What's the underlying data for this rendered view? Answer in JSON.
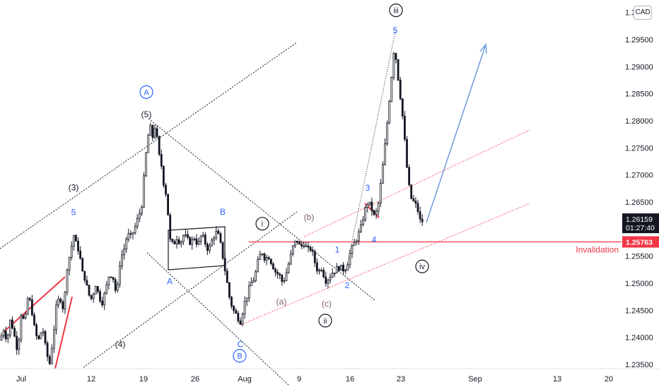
{
  "currency_badge": "CAD",
  "colors": {
    "candle": "#131722",
    "axis_bg": "#ffffff",
    "axis_text": "#131722",
    "blue_label": "#2962ff",
    "black_label": "#131722",
    "purple_label": "#7e5d6f",
    "red": "#f23645",
    "red_channel": "#f7525f",
    "blue_arrow": "#5b8fd6",
    "price_tag_bg": "#131722",
    "invalidation_tag_bg": "#f23645"
  },
  "chart_data": {
    "type": "candlestick",
    "title": "",
    "xlabel": "",
    "ylabel": "",
    "ylim": [
      1.2345,
      1.3025
    ],
    "y_ticks": [
      "1.23500",
      "1.24000",
      "1.24500",
      "1.25000",
      "1.25500",
      "1.26000",
      "1.26500",
      "1.27000",
      "1.27500",
      "1.28000",
      "1.28500",
      "1.29000",
      "1.29500",
      "1.3"
    ],
    "x_ticks": [
      "Jul",
      "12",
      "19",
      "26",
      "Aug",
      "9",
      "16",
      "23",
      "Sep",
      "13",
      "20"
    ],
    "current_price": "1.26159",
    "countdown": "01:27:40",
    "invalidation_price": "1.25763",
    "invalidation_label": "Invalidation",
    "close_path": [
      [
        0,
        1.2395
      ],
      [
        5,
        1.2415
      ],
      [
        10,
        1.2395
      ],
      [
        15,
        1.2435
      ],
      [
        20,
        1.2405
      ],
      [
        25,
        1.2375
      ],
      [
        30,
        1.2445
      ],
      [
        35,
        1.2425
      ],
      [
        40,
        1.248
      ],
      [
        45,
        1.245
      ],
      [
        50,
        1.2405
      ],
      [
        55,
        1.2395
      ],
      [
        60,
        1.242
      ],
      [
        65,
        1.2375
      ],
      [
        70,
        1.235
      ],
      [
        75,
        1.24
      ],
      [
        80,
        1.246
      ],
      [
        85,
        1.2475
      ],
      [
        90,
        1.245
      ],
      [
        95,
        1.253
      ],
      [
        100,
        1.256
      ],
      [
        104,
        1.259
      ],
      [
        108,
        1.257
      ],
      [
        112,
        1.256
      ],
      [
        116,
        1.252
      ],
      [
        120,
        1.251
      ],
      [
        125,
        1.248
      ],
      [
        130,
        1.247
      ],
      [
        135,
        1.25
      ],
      [
        140,
        1.2475
      ],
      [
        145,
        1.2465
      ],
      [
        150,
        1.249
      ],
      [
        155,
        1.252
      ],
      [
        160,
        1.251
      ],
      [
        165,
        1.2475
      ],
      [
        170,
        1.2545
      ],
      [
        175,
        1.256
      ],
      [
        180,
        1.259
      ],
      [
        185,
        1.2585
      ],
      [
        190,
        1.26
      ],
      [
        195,
        1.262
      ],
      [
        200,
        1.264
      ],
      [
        204,
        1.27
      ],
      [
        208,
        1.276
      ],
      [
        212,
        1.279
      ],
      [
        216,
        1.277
      ],
      [
        220,
        1.2795
      ],
      [
        224,
        1.274
      ],
      [
        228,
        1.272
      ],
      [
        232,
        1.268
      ],
      [
        236,
        1.266
      ],
      [
        240,
        1.258
      ],
      [
        245,
        1.257
      ],
      [
        250,
        1.2585
      ],
      [
        255,
        1.2575
      ],
      [
        260,
        1.259
      ],
      [
        265,
        1.258
      ],
      [
        270,
        1.2575
      ],
      [
        275,
        1.2585
      ],
      [
        280,
        1.257
      ],
      [
        285,
        1.259
      ],
      [
        290,
        1.2575
      ],
      [
        295,
        1.256
      ],
      [
        300,
        1.258
      ],
      [
        305,
        1.2595
      ],
      [
        310,
        1.2585
      ],
      [
        315,
        1.255
      ],
      [
        320,
        1.251
      ],
      [
        325,
        1.247
      ],
      [
        330,
        1.245
      ],
      [
        335,
        1.244
      ],
      [
        340,
        1.243
      ],
      [
        345,
        1.246
      ],
      [
        350,
        1.248
      ],
      [
        355,
        1.25
      ],
      [
        360,
        1.251
      ],
      [
        365,
        1.254
      ],
      [
        370,
        1.256
      ],
      [
        375,
        1.2545
      ],
      [
        380,
        1.255
      ],
      [
        385,
        1.2535
      ],
      [
        390,
        1.252
      ],
      [
        395,
        1.2515
      ],
      [
        400,
        1.25
      ],
      [
        405,
        1.252
      ],
      [
        410,
        1.2545
      ],
      [
        415,
        1.257
      ],
      [
        420,
        1.258
      ],
      [
        425,
        1.2565
      ],
      [
        430,
        1.2575
      ],
      [
        435,
        1.256
      ],
      [
        440,
        1.2565
      ],
      [
        445,
        1.254
      ],
      [
        450,
        1.252
      ],
      [
        455,
        1.253
      ],
      [
        460,
        1.2505
      ],
      [
        465,
        1.251
      ],
      [
        470,
        1.252
      ],
      [
        475,
        1.2525
      ],
      [
        480,
        1.253
      ],
      [
        485,
        1.2525
      ],
      [
        490,
        1.253
      ],
      [
        495,
        1.2555
      ],
      [
        500,
        1.257
      ],
      [
        505,
        1.2585
      ],
      [
        510,
        1.26
      ],
      [
        515,
        1.263
      ],
      [
        520,
        1.265
      ],
      [
        525,
        1.264
      ],
      [
        530,
        1.262
      ],
      [
        535,
        1.2645
      ],
      [
        540,
        1.27
      ],
      [
        545,
        1.276
      ],
      [
        550,
        1.283
      ],
      [
        555,
        1.29
      ],
      [
        558,
        1.2945
      ],
      [
        561,
        1.29
      ],
      [
        565,
        1.286
      ],
      [
        570,
        1.28
      ],
      [
        575,
        1.272
      ],
      [
        580,
        1.266
      ],
      [
        585,
        1.265
      ],
      [
        590,
        1.264
      ],
      [
        595,
        1.261
      ],
      [
        598,
        1.2616
      ]
    ],
    "labels": [
      {
        "text": "A",
        "kind": "circled",
        "color": "blue",
        "x": 207,
        "price": 1.2853
      },
      {
        "text": "(5)",
        "kind": "plain",
        "color": "black",
        "x": 207,
        "price": 1.2812
      },
      {
        "text": "(3)",
        "kind": "plain",
        "color": "black",
        "x": 104,
        "price": 1.2677
      },
      {
        "text": "5",
        "kind": "plain",
        "color": "blue",
        "x": 104,
        "price": 1.2631
      },
      {
        "text": "B",
        "kind": "plain",
        "color": "blue",
        "x": 315,
        "price": 1.2632
      },
      {
        "text": "A",
        "kind": "plain",
        "color": "blue",
        "x": 240,
        "price": 1.2503
      },
      {
        "text": "i",
        "kind": "circled",
        "color": "black",
        "x": 371,
        "price": 1.261
      },
      {
        "text": "(b)",
        "kind": "plain",
        "color": "purple",
        "x": 437,
        "price": 1.2622
      },
      {
        "text": "(a)",
        "kind": "plain",
        "color": "purple",
        "x": 398,
        "price": 1.2466
      },
      {
        "text": "(c)",
        "kind": "plain",
        "color": "purple",
        "x": 462,
        "price": 1.2462
      },
      {
        "text": "ii",
        "kind": "circled",
        "color": "black",
        "x": 460,
        "price": 1.2431
      },
      {
        "text": "C",
        "kind": "plain",
        "color": "blue",
        "x": 340,
        "price": 1.2387
      },
      {
        "text": "B",
        "kind": "circled",
        "color": "blue",
        "x": 339,
        "price": 1.2366
      },
      {
        "text": "(4)",
        "kind": "plain",
        "color": "black",
        "x": 170,
        "price": 1.2387
      },
      {
        "text": "1",
        "kind": "plain",
        "color": "blue",
        "x": 477,
        "price": 1.2562
      },
      {
        "text": "2",
        "kind": "plain",
        "color": "blue",
        "x": 491,
        "price": 1.2496
      },
      {
        "text": "3",
        "kind": "plain",
        "color": "blue",
        "x": 520,
        "price": 1.2676
      },
      {
        "text": "4",
        "kind": "plain",
        "color": "blue",
        "x": 529,
        "price": 1.258
      },
      {
        "text": "5",
        "kind": "plain",
        "color": "blue",
        "x": 559,
        "price": 1.2967
      },
      {
        "text": "iii",
        "kind": "circled",
        "color": "black",
        "x": 560,
        "price": 1.3004
      },
      {
        "text": "iv",
        "kind": "circled",
        "color": "black",
        "x": 597,
        "price": 1.2531
      }
    ]
  }
}
